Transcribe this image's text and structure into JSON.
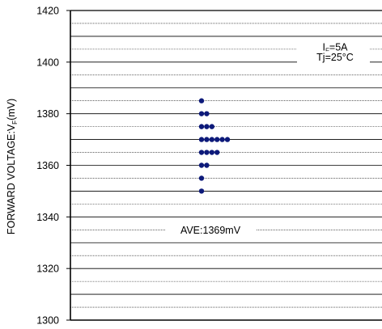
{
  "chart_data": {
    "type": "scatter",
    "ylabel": {
      "main": "FORWARD VOLTAGE:V",
      "sub": "F",
      "unit": "(mV)"
    },
    "ylim": [
      1300,
      1420
    ],
    "yticks": [
      1300,
      1320,
      1340,
      1360,
      1380,
      1400,
      1420
    ],
    "grid": true,
    "conditions": [
      {
        "main": "I",
        "sub": "F",
        "rest": "=5A"
      },
      {
        "main": "Tj=25°C",
        "sub": "",
        "rest": ""
      }
    ],
    "average_label": "AVE:1369mV",
    "average_value": 1369,
    "distribution": [
      {
        "value": 1385,
        "count": 1
      },
      {
        "value": 1380,
        "count": 2
      },
      {
        "value": 1375,
        "count": 3
      },
      {
        "value": 1370,
        "count": 6
      },
      {
        "value": 1365,
        "count": 4
      },
      {
        "value": 1360,
        "count": 2
      },
      {
        "value": 1355,
        "count": 1
      },
      {
        "value": 1350,
        "count": 1
      }
    ],
    "colors": {
      "point": "#0d1a7a",
      "axis": "#000000",
      "grid": "#000000"
    }
  }
}
